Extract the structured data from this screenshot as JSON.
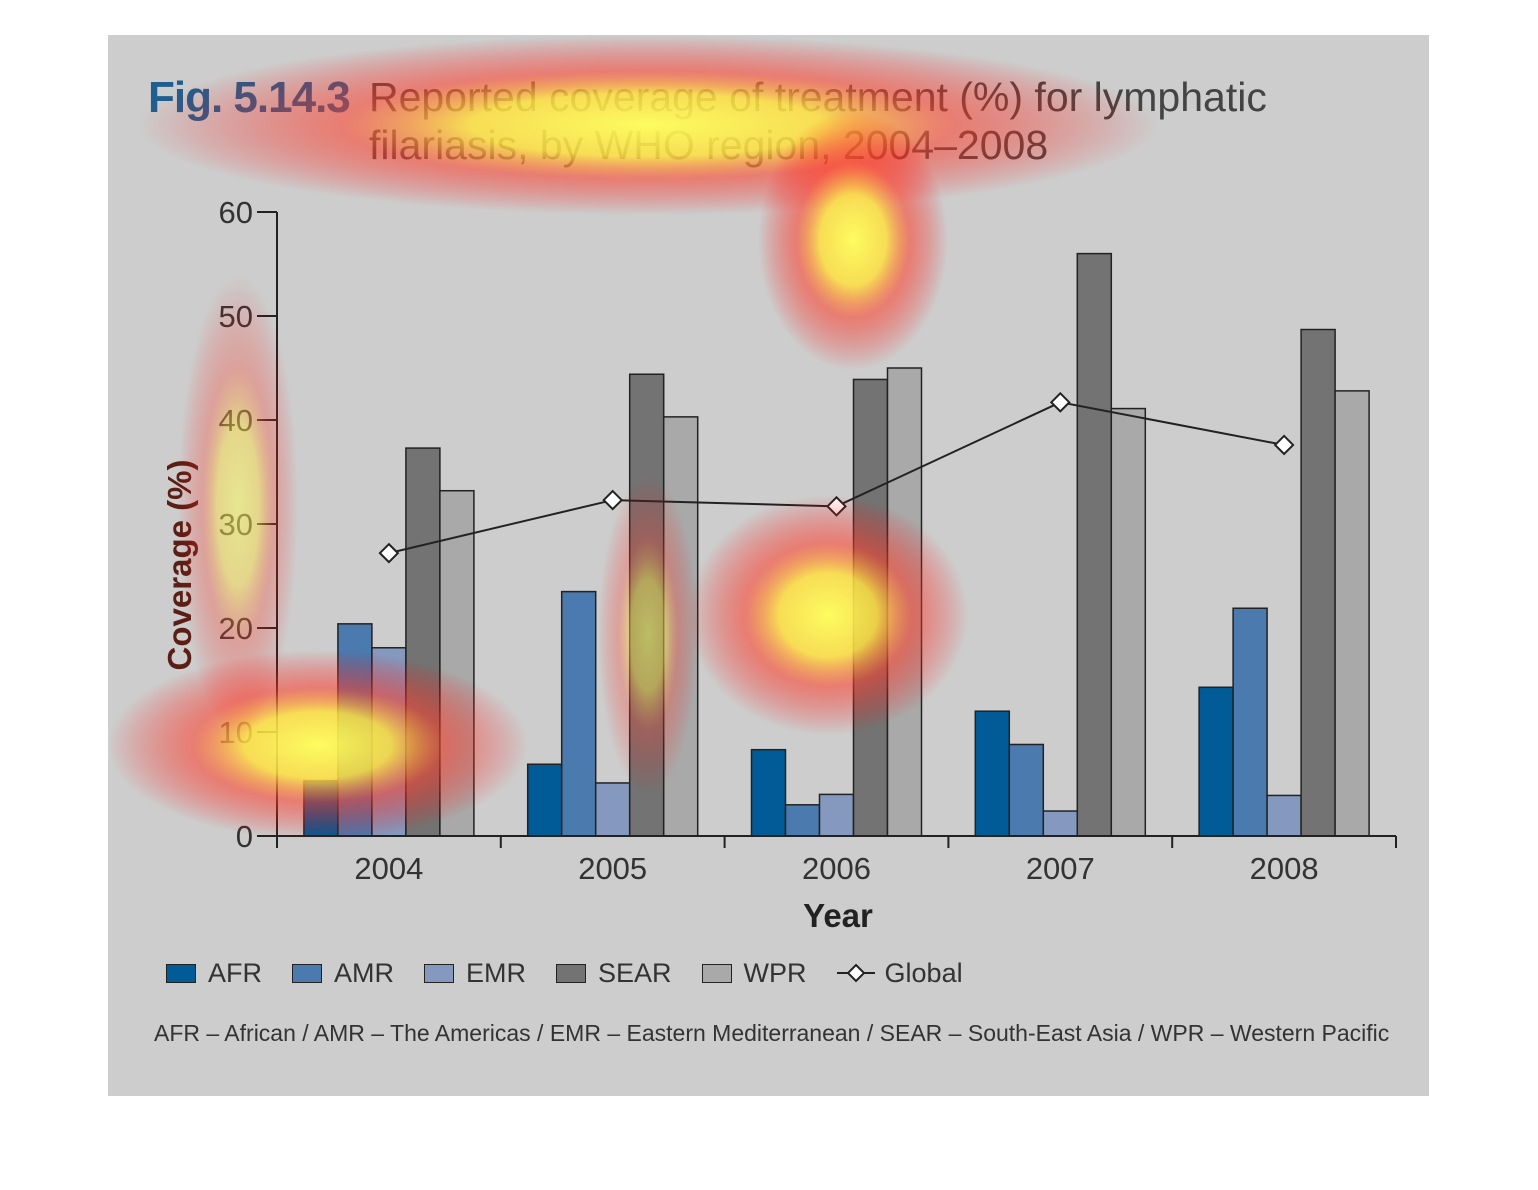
{
  "figure": {
    "label": "Fig. 5.14.3",
    "title": "Reported coverage of treatment (%) for lymphatic filariasis, by WHO region, 2004–2008",
    "footnote": "AFR – African / AMR – The Americas / EMR – Eastern Mediterranean / SEAR – South-East Asia / WPR – Western Pacific"
  },
  "colors": {
    "AFR": "#005b96",
    "AMR": "#4a7aae",
    "EMR": "#8499bd",
    "SEAR": "#737373",
    "WPR": "#a9a9a9",
    "Global": "#222222",
    "background": "#cdcdcd"
  },
  "chart_data": {
    "type": "bar",
    "title": "Reported coverage of treatment (%) for lymphatic filariasis, by WHO region, 2004–2008",
    "xlabel": "Year",
    "ylabel": "Coverage (%)",
    "ylim": [
      0,
      60
    ],
    "yticks": [
      0,
      10,
      20,
      30,
      40,
      50,
      60
    ],
    "categories": [
      "2004",
      "2005",
      "2006",
      "2007",
      "2008"
    ],
    "series": [
      {
        "name": "AFR",
        "values": [
          5.3,
          6.9,
          8.3,
          12.0,
          14.3
        ]
      },
      {
        "name": "AMR",
        "values": [
          20.4,
          23.5,
          3.0,
          8.8,
          21.9
        ]
      },
      {
        "name": "EMR",
        "values": [
          18.1,
          5.1,
          4.0,
          2.4,
          3.9
        ]
      },
      {
        "name": "SEAR",
        "values": [
          37.3,
          44.4,
          43.9,
          56.0,
          48.7
        ]
      },
      {
        "name": "WPR",
        "values": [
          33.2,
          40.3,
          45.0,
          41.1,
          42.8
        ]
      }
    ],
    "line_series": {
      "name": "Global",
      "values": [
        27.2,
        32.3,
        31.7,
        41.7,
        37.6
      ]
    },
    "grid": false,
    "legend_position": "bottom-left",
    "overlay": "attention-heatmap"
  }
}
